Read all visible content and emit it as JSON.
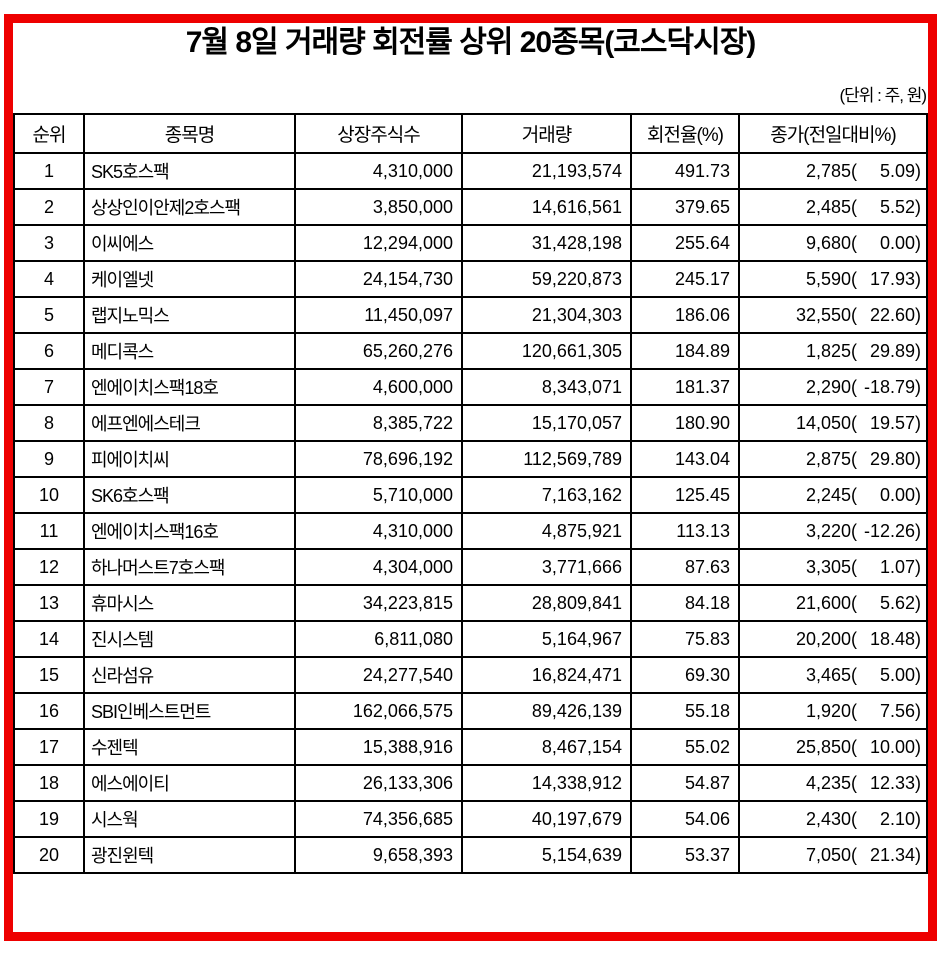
{
  "title": "7월 8일 거래량 회전률 상위 20종목(코스닥시장)",
  "unit_note": "(단위 : 주, 원)",
  "colors": {
    "frame": "#ee0000",
    "grid": "#000000",
    "text": "#000000",
    "background": "#ffffff"
  },
  "table": {
    "columns": [
      "순위",
      "종목명",
      "상장주식수",
      "거래량",
      "회전율(%)",
      "종가(전일대비%)"
    ],
    "rows": [
      {
        "rank": "1",
        "name": "SK5호스팩",
        "shares": "4,310,000",
        "volume": "21,193,574",
        "turnover": "491.73",
        "close": "2,785",
        "change_pct": "5.09"
      },
      {
        "rank": "2",
        "name": "상상인이안제2호스팩",
        "shares": "3,850,000",
        "volume": "14,616,561",
        "turnover": "379.65",
        "close": "2,485",
        "change_pct": "5.52"
      },
      {
        "rank": "3",
        "name": "이씨에스",
        "shares": "12,294,000",
        "volume": "31,428,198",
        "turnover": "255.64",
        "close": "9,680",
        "change_pct": "0.00"
      },
      {
        "rank": "4",
        "name": "케이엘넷",
        "shares": "24,154,730",
        "volume": "59,220,873",
        "turnover": "245.17",
        "close": "5,590",
        "change_pct": "17.93"
      },
      {
        "rank": "5",
        "name": "랩지노믹스",
        "shares": "11,450,097",
        "volume": "21,304,303",
        "turnover": "186.06",
        "close": "32,550",
        "change_pct": "22.60"
      },
      {
        "rank": "6",
        "name": "메디콕스",
        "shares": "65,260,276",
        "volume": "120,661,305",
        "turnover": "184.89",
        "close": "1,825",
        "change_pct": "29.89"
      },
      {
        "rank": "7",
        "name": "엔에이치스팩18호",
        "shares": "4,600,000",
        "volume": "8,343,071",
        "turnover": "181.37",
        "close": "2,290",
        "change_pct": "-18.79"
      },
      {
        "rank": "8",
        "name": "에프엔에스테크",
        "shares": "8,385,722",
        "volume": "15,170,057",
        "turnover": "180.90",
        "close": "14,050",
        "change_pct": "19.57"
      },
      {
        "rank": "9",
        "name": "피에이치씨",
        "shares": "78,696,192",
        "volume": "112,569,789",
        "turnover": "143.04",
        "close": "2,875",
        "change_pct": "29.80"
      },
      {
        "rank": "10",
        "name": "SK6호스팩",
        "shares": "5,710,000",
        "volume": "7,163,162",
        "turnover": "125.45",
        "close": "2,245",
        "change_pct": "0.00"
      },
      {
        "rank": "11",
        "name": "엔에이치스팩16호",
        "shares": "4,310,000",
        "volume": "4,875,921",
        "turnover": "113.13",
        "close": "3,220",
        "change_pct": "-12.26"
      },
      {
        "rank": "12",
        "name": "하나머스트7호스팩",
        "shares": "4,304,000",
        "volume": "3,771,666",
        "turnover": "87.63",
        "close": "3,305",
        "change_pct": "1.07"
      },
      {
        "rank": "13",
        "name": "휴마시스",
        "shares": "34,223,815",
        "volume": "28,809,841",
        "turnover": "84.18",
        "close": "21,600",
        "change_pct": "5.62"
      },
      {
        "rank": "14",
        "name": "진시스템",
        "shares": "6,811,080",
        "volume": "5,164,967",
        "turnover": "75.83",
        "close": "20,200",
        "change_pct": "18.48"
      },
      {
        "rank": "15",
        "name": "신라섬유",
        "shares": "24,277,540",
        "volume": "16,824,471",
        "turnover": "69.30",
        "close": "3,465",
        "change_pct": "5.00"
      },
      {
        "rank": "16",
        "name": "SBI인베스트먼트",
        "shares": "162,066,575",
        "volume": "89,426,139",
        "turnover": "55.18",
        "close": "1,920",
        "change_pct": "7.56"
      },
      {
        "rank": "17",
        "name": "수젠텍",
        "shares": "15,388,916",
        "volume": "8,467,154",
        "turnover": "55.02",
        "close": "25,850",
        "change_pct": "10.00"
      },
      {
        "rank": "18",
        "name": "에스에이티",
        "shares": "26,133,306",
        "volume": "14,338,912",
        "turnover": "54.87",
        "close": "4,235",
        "change_pct": "12.33"
      },
      {
        "rank": "19",
        "name": "시스웍",
        "shares": "74,356,685",
        "volume": "40,197,679",
        "turnover": "54.06",
        "close": "2,430",
        "change_pct": "2.10"
      },
      {
        "rank": "20",
        "name": "광진윈텍",
        "shares": "9,658,393",
        "volume": "5,154,639",
        "turnover": "53.37",
        "close": "7,050",
        "change_pct": "21.34"
      }
    ]
  }
}
